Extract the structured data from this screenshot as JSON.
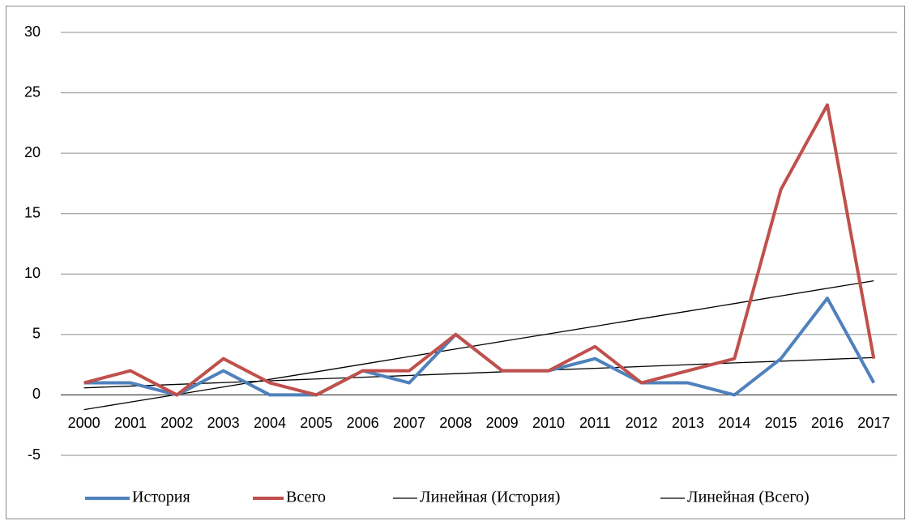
{
  "chart_data": {
    "type": "line",
    "categories": [
      "2000",
      "2001",
      "2002",
      "2003",
      "2004",
      "2005",
      "2006",
      "2007",
      "2008",
      "2009",
      "2010",
      "2011",
      "2012",
      "2013",
      "2014",
      "2015",
      "2016",
      "2017"
    ],
    "series": [
      {
        "name": "История",
        "color": "#4f81bd",
        "line_width": 4,
        "values": [
          1,
          1,
          0,
          2,
          0,
          0,
          2,
          1,
          5,
          2,
          2,
          3,
          1,
          1,
          0,
          3,
          8,
          1
        ]
      },
      {
        "name": "Всего",
        "color": "#c0504d",
        "line_width": 4,
        "values": [
          1,
          2,
          0,
          3,
          1,
          0,
          2,
          2,
          5,
          2,
          2,
          4,
          1,
          2,
          3,
          17,
          24,
          3
        ]
      },
      {
        "name": "Линейная (История)",
        "color": "#000000",
        "line_width": 1.3,
        "values": [
          0.58,
          0.73,
          0.87,
          1.02,
          1.17,
          1.32,
          1.46,
          1.61,
          1.76,
          1.91,
          2.06,
          2.2,
          2.35,
          2.5,
          2.65,
          2.79,
          2.94,
          3.09
        ]
      },
      {
        "name": "Линейная (Всего)",
        "color": "#000000",
        "line_width": 1.3,
        "values": [
          -1.22,
          -0.59,
          0.03,
          0.66,
          1.29,
          1.91,
          2.54,
          3.17,
          3.8,
          4.43,
          5.05,
          5.68,
          6.31,
          6.93,
          7.56,
          8.19,
          8.82,
          9.44
        ]
      }
    ],
    "ylim": [
      -5,
      30
    ],
    "yticks": [
      -5,
      0,
      5,
      10,
      15,
      20,
      25,
      30
    ],
    "grid": true,
    "legend": "bottom"
  }
}
